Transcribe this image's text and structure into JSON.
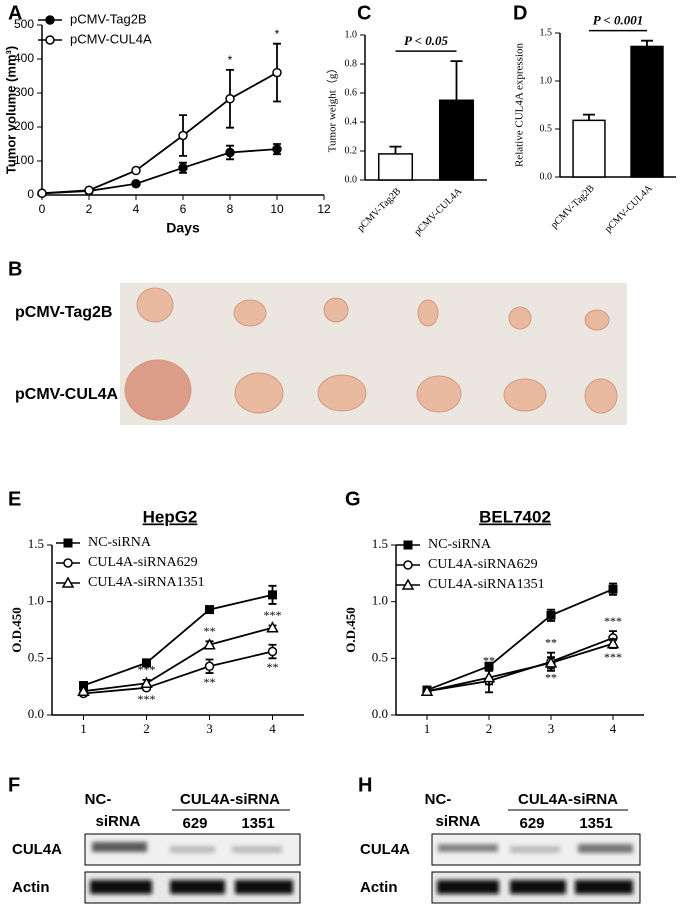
{
  "chart_data": [
    {
      "type": "line",
      "panel": "A",
      "xlabel": "Days",
      "ylabel": "Tumor volume (mm³)",
      "x": [
        0,
        2,
        4,
        6,
        8,
        10
      ],
      "xlim": [
        0,
        12
      ],
      "xticks": [
        0,
        2,
        4,
        6,
        8,
        10,
        12
      ],
      "ylim": [
        0,
        500
      ],
      "yticks": [
        0,
        100,
        200,
        300,
        400,
        500
      ],
      "series": [
        {
          "name": "pCMV-Tag2B",
          "color": "#000000",
          "marker": "circle-filled",
          "values": [
            5,
            12,
            33,
            80,
            125,
            135
          ],
          "errors": [
            3,
            4,
            5,
            15,
            20,
            15
          ]
        },
        {
          "name": "pCMV-CUL4A",
          "color": "#000000",
          "marker": "circle-open",
          "values": [
            5,
            14,
            72,
            175,
            283,
            360
          ],
          "errors": [
            3,
            4,
            5,
            60,
            85,
            85
          ],
          "significance": [
            null,
            null,
            null,
            null,
            "*",
            "*"
          ]
        }
      ]
    },
    {
      "type": "bar",
      "panel": "C",
      "ylabel": "Tumor weight（g）",
      "annotation": "P < 0.05",
      "categories": [
        "pCMV-Tag2B",
        "pCMV-CUL4A"
      ],
      "values": [
        0.18,
        0.55
      ],
      "errors": [
        0.05,
        0.27
      ],
      "colors": [
        "#ffffff",
        "#000000"
      ],
      "ylim": [
        0,
        1.0
      ],
      "yticks": [
        {
          "value": 0,
          "label": "0.0"
        },
        0.2,
        0.4,
        0.6,
        0.8,
        {
          "value": 1,
          "label": "1.0"
        }
      ]
    },
    {
      "type": "bar",
      "panel": "D",
      "ylabel": "Relative CUL4A expression",
      "annotation": "P < 0.001",
      "categories": [
        "pCMV-Tag2B",
        "pCMV-CUL4A"
      ],
      "values": [
        0.59,
        1.36
      ],
      "errors": [
        0.06,
        0.06
      ],
      "colors": [
        "#ffffff",
        "#000000"
      ],
      "ylim": [
        0,
        1.5
      ],
      "yticks": [
        {
          "value": 0,
          "label": "0.0"
        },
        0.5,
        {
          "value": 1,
          "label": "1.0"
        },
        1.5
      ]
    },
    {
      "type": "line",
      "panel": "E",
      "title": "HepG2",
      "ylabel": "O.D.450",
      "x": [
        1,
        2,
        3,
        4
      ],
      "xlim": [
        0.5,
        4.5
      ],
      "xticks": [
        1,
        2,
        3,
        4
      ],
      "ylim": [
        0,
        1.5
      ],
      "yticks": [
        {
          "value": 0,
          "label": "0.0"
        },
        0.5,
        {
          "value": 1,
          "label": "1.0"
        },
        1.5
      ],
      "series": [
        {
          "name": "NC-siRNA",
          "color": "#000000",
          "marker": "square-filled",
          "values": [
            0.26,
            0.46,
            0.93,
            1.06
          ],
          "errors": [
            0.03,
            0.02,
            0.02,
            0.08
          ]
        },
        {
          "name": "CUL4A-siRNA629",
          "color": "#000000",
          "marker": "circle-open",
          "values": [
            0.19,
            0.24,
            0.43,
            0.56
          ],
          "errors": [
            0.02,
            0.02,
            0.06,
            0.06
          ],
          "significance": [
            null,
            "***",
            "**",
            "**"
          ]
        },
        {
          "name": "CUL4A-siRNA1351",
          "color": "#000000",
          "marker": "triangle-open",
          "values": [
            0.21,
            0.28,
            0.62,
            0.77
          ],
          "errors": [
            0.02,
            0.03,
            0.03,
            0.02
          ],
          "significance": [
            null,
            "***",
            "**",
            "***"
          ]
        }
      ]
    },
    {
      "type": "line",
      "panel": "G",
      "title": "BEL7402",
      "ylabel": "O.D.450",
      "x": [
        1,
        2,
        3,
        4
      ],
      "xlim": [
        0.5,
        4.5
      ],
      "xticks": [
        1,
        2,
        3,
        4
      ],
      "ylim": [
        0,
        1.5
      ],
      "yticks": [
        {
          "value": 0,
          "label": "0.0"
        },
        0.5,
        {
          "value": 1,
          "label": "1.0"
        },
        1.5
      ],
      "series": [
        {
          "name": "NC-siRNA",
          "color": "#000000",
          "marker": "square-filled",
          "values": [
            0.22,
            0.43,
            0.88,
            1.11
          ],
          "errors": [
            0.02,
            0.03,
            0.05,
            0.05
          ]
        },
        {
          "name": "CUL4A-siRNA629",
          "color": "#000000",
          "marker": "circle-open",
          "values": [
            0.21,
            0.3,
            0.47,
            0.68
          ],
          "errors": [
            0.02,
            0.1,
            0.08,
            0.06
          ],
          "significance": [
            null,
            null,
            "**",
            "***"
          ]
        },
        {
          "name": "CUL4A-siRNA1351",
          "color": "#000000",
          "marker": "triangle-open",
          "values": [
            0.21,
            0.33,
            0.46,
            0.63
          ],
          "errors": [
            0.02,
            0.06,
            0.05,
            0.04
          ],
          "significance": [
            null,
            "**",
            "**",
            "***"
          ]
        }
      ]
    }
  ],
  "photo": {
    "panel": "B",
    "rows": [
      "pCMV-Tag2B",
      "pCMV-CUL4A"
    ]
  },
  "blots": [
    {
      "panel": "F",
      "control": [
        "NC-",
        "siRNA"
      ],
      "group": "CUL4A-siRNA",
      "lanes": [
        "629",
        "1351"
      ],
      "rows": [
        "CUL4A",
        "Actin"
      ]
    },
    {
      "panel": "H",
      "control": [
        "NC-",
        "siRNA"
      ],
      "group": "CUL4A-siRNA",
      "lanes": [
        "629",
        "1351"
      ],
      "rows": [
        "CUL4A",
        "Actin"
      ]
    }
  ]
}
